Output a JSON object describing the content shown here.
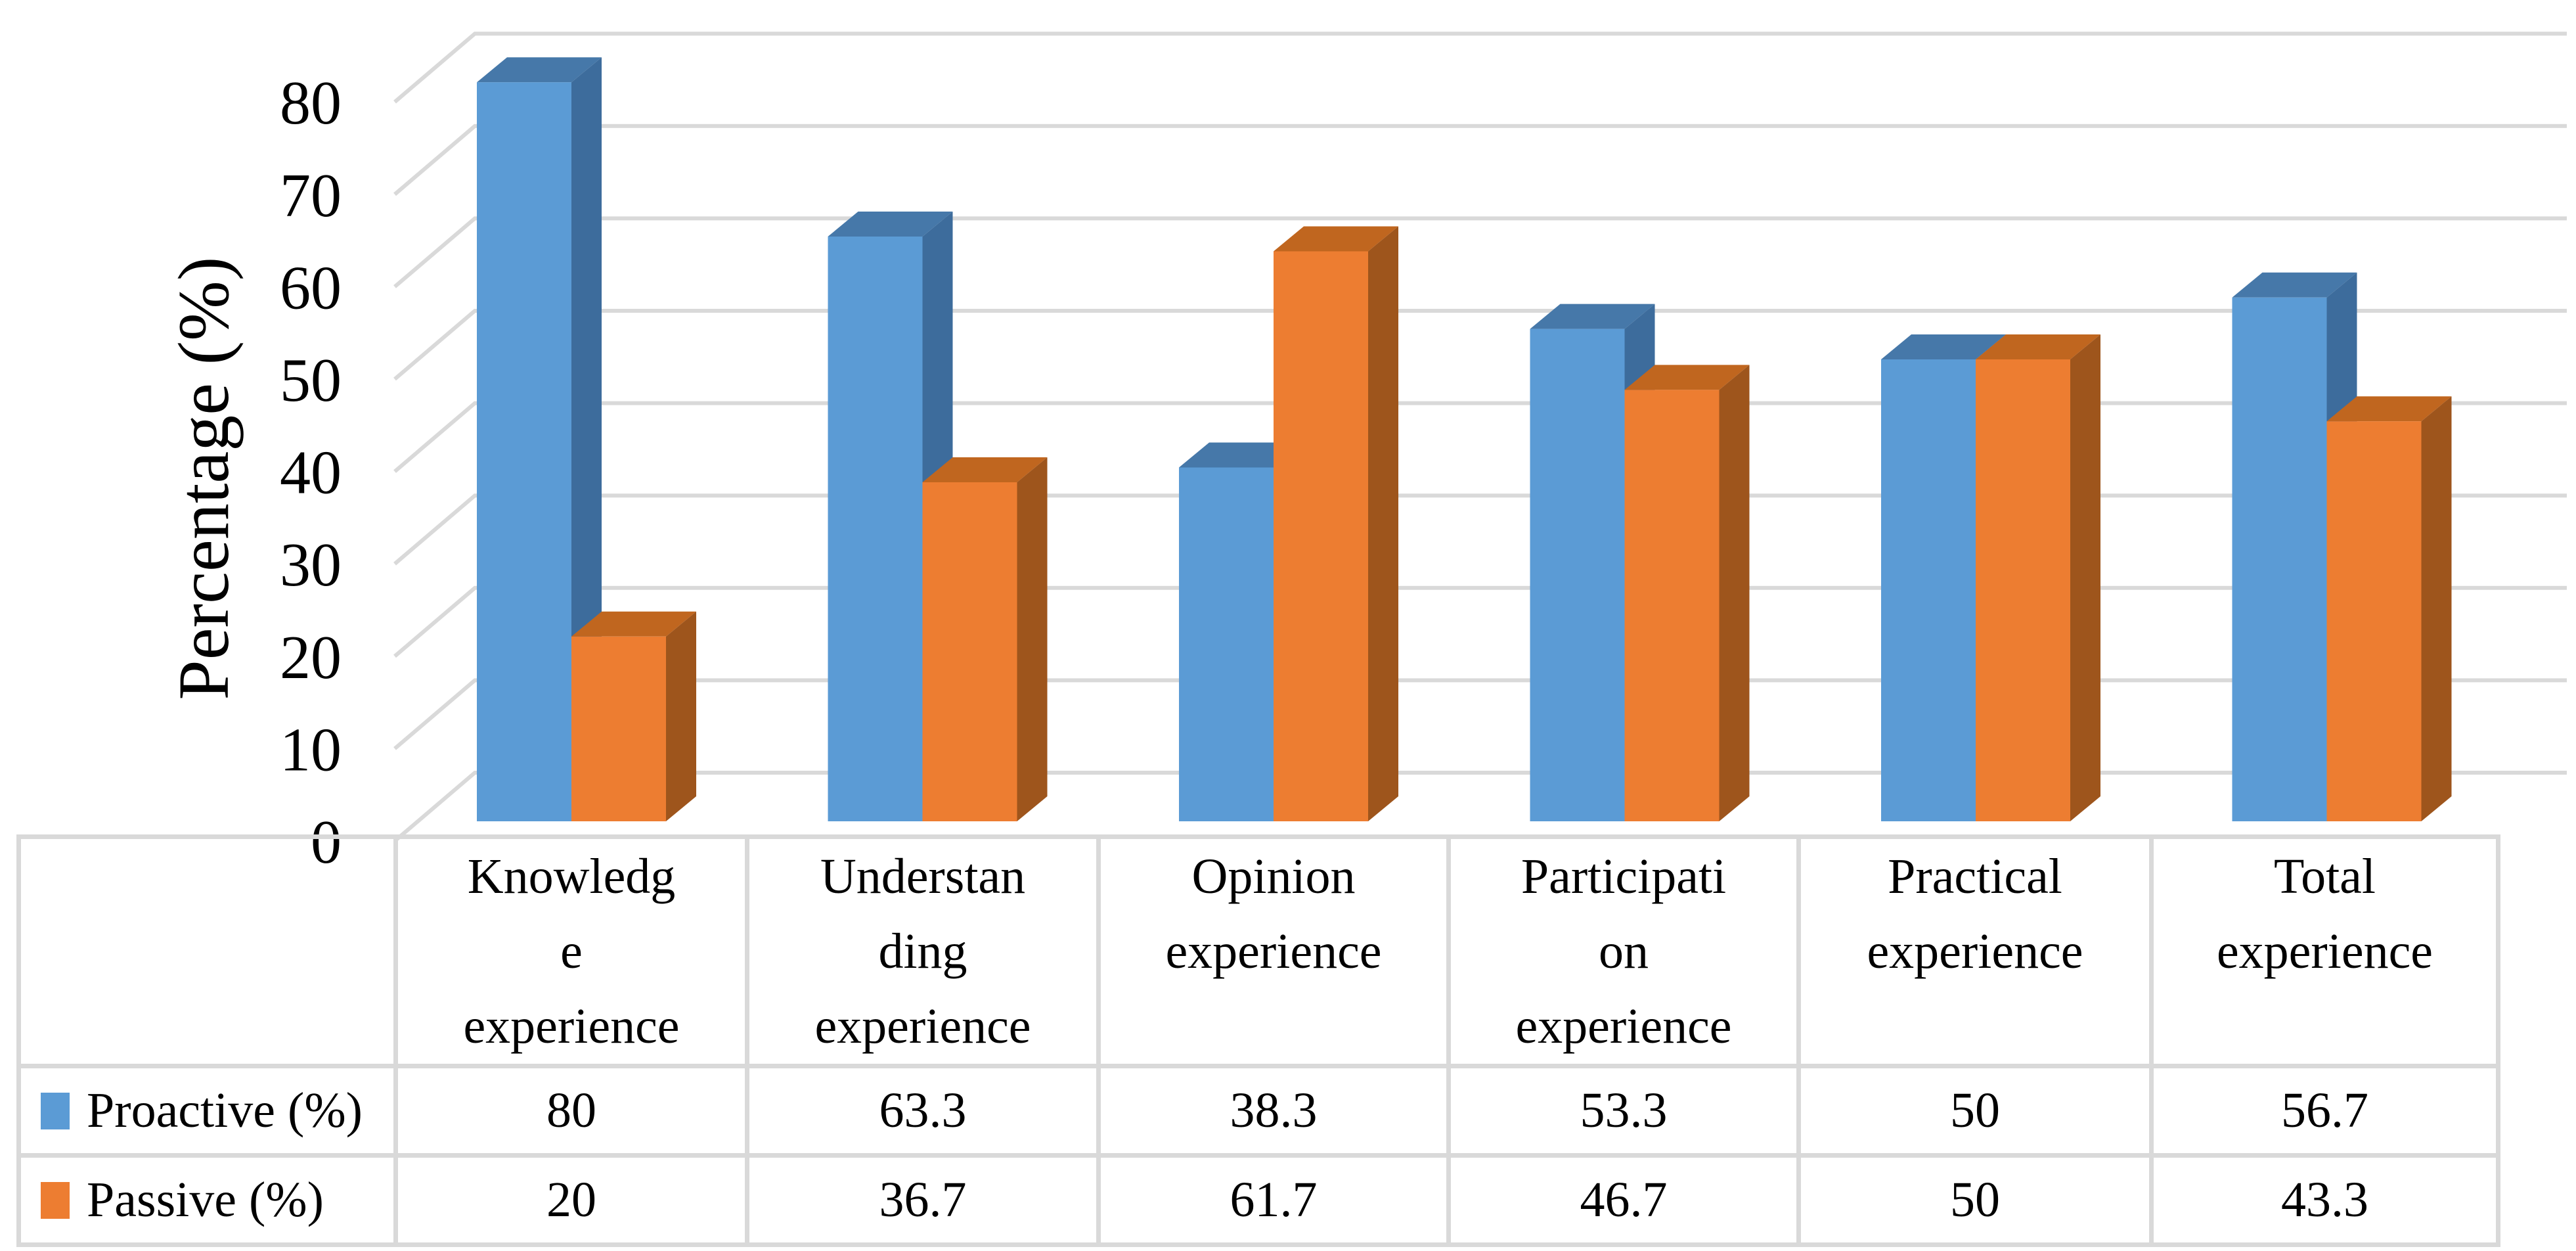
{
  "chart_data": {
    "type": "bar",
    "projection": "3d-clustered-column",
    "title": "",
    "ylabel": "Percentage (%)",
    "xlabel": "",
    "ylim": [
      0,
      80
    ],
    "ytick_step": 10,
    "ytick_labels": [
      "0",
      "10",
      "20",
      "30",
      "40",
      "50",
      "60",
      "70",
      "80"
    ],
    "grid": true,
    "gridline_color": "#D9D9D9",
    "table_border_color": "#D9D9D9",
    "axis_text_color": "#000000",
    "legend_position": "table-left-swatches",
    "categories": [
      "Knowledge experience",
      "Understanding experience",
      "Opinion experience",
      "Participation experience",
      "Practical experience",
      "Total experience"
    ],
    "category_display_lines": [
      [
        "Knowledg",
        "e",
        "experience"
      ],
      [
        "Understan",
        "ding",
        "experience"
      ],
      [
        "Opinion",
        "experience"
      ],
      [
        "Participati",
        "on",
        "experience"
      ],
      [
        "Practical",
        "experience"
      ],
      [
        "Total",
        "experience"
      ]
    ],
    "series": [
      {
        "name": "Proactive (%)",
        "values": [
          80,
          63.3,
          38.3,
          53.3,
          50,
          56.7
        ],
        "value_labels": [
          "80",
          "63.3",
          "38.3",
          "53.3",
          "50",
          "56.7"
        ],
        "color": "#5B9BD5",
        "color_top": "#4678A9",
        "color_side": "#3D6C9C"
      },
      {
        "name": "Passive (%)",
        "values": [
          20,
          36.7,
          61.7,
          46.7,
          50,
          43.3
        ],
        "value_labels": [
          "20",
          "36.7",
          "61.7",
          "46.7",
          "50",
          "43.3"
        ],
        "color": "#ED7D31",
        "color_top": "#C0661F",
        "color_side": "#9E551C"
      }
    ]
  }
}
